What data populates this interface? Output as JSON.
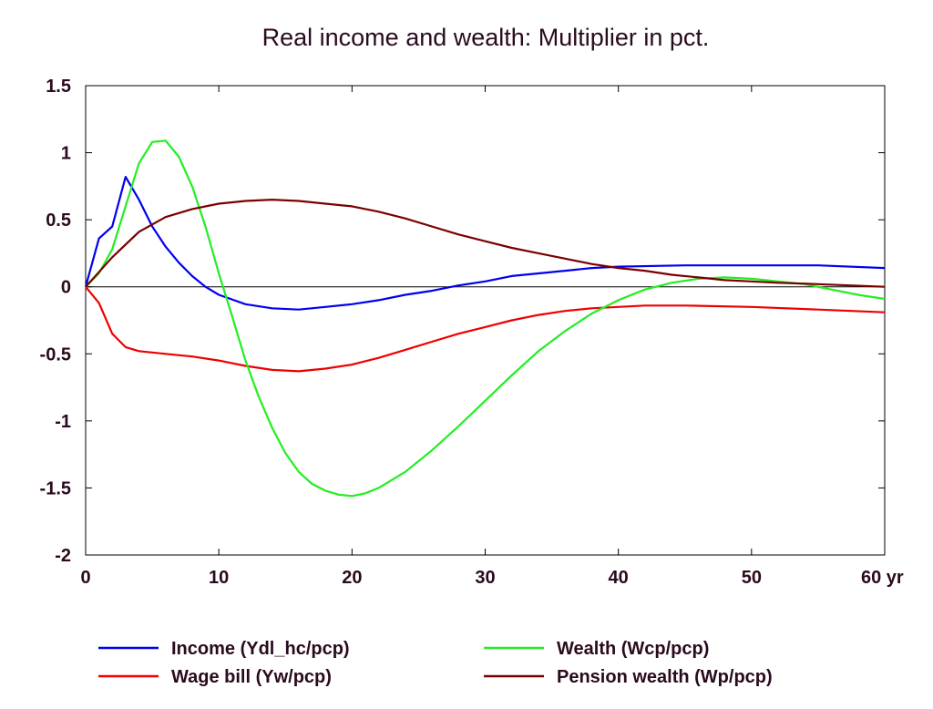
{
  "chart_data": {
    "type": "line",
    "title": "Real income and wealth: Multiplier in pct.",
    "xlabel": "",
    "ylabel": "",
    "x_unit_label": "yr",
    "xlim": [
      0,
      60
    ],
    "ylim": [
      -2,
      1.5
    ],
    "x_ticks": [
      0,
      10,
      20,
      30,
      40,
      50,
      60
    ],
    "x_tick_labels": [
      "0",
      "10",
      "20",
      "30",
      "40",
      "50",
      "60 yr"
    ],
    "y_ticks": [
      1.5,
      1,
      0.5,
      0,
      -0.5,
      -1,
      -1.5,
      -2
    ],
    "y_tick_labels": [
      "1.5",
      "1",
      "0.5",
      "0",
      "-0.5",
      "-1",
      "-1.5",
      "-2"
    ],
    "zero_line": true,
    "grid": false,
    "legend_position": "bottom",
    "series": [
      {
        "name": "Income (Ydl_hc/pcp)",
        "color": "#0000ee",
        "points": [
          [
            0,
            0
          ],
          [
            1,
            0.36
          ],
          [
            2,
            0.45
          ],
          [
            3,
            0.82
          ],
          [
            4,
            0.65
          ],
          [
            5,
            0.45
          ],
          [
            6,
            0.3
          ],
          [
            7,
            0.18
          ],
          [
            8,
            0.08
          ],
          [
            9,
            0.0
          ],
          [
            10,
            -0.06
          ],
          [
            12,
            -0.13
          ],
          [
            14,
            -0.16
          ],
          [
            16,
            -0.17
          ],
          [
            18,
            -0.15
          ],
          [
            20,
            -0.13
          ],
          [
            22,
            -0.1
          ],
          [
            24,
            -0.06
          ],
          [
            26,
            -0.03
          ],
          [
            28,
            0.01
          ],
          [
            30,
            0.04
          ],
          [
            32,
            0.08
          ],
          [
            34,
            0.1
          ],
          [
            36,
            0.12
          ],
          [
            38,
            0.14
          ],
          [
            40,
            0.15
          ],
          [
            45,
            0.16
          ],
          [
            50,
            0.16
          ],
          [
            55,
            0.16
          ],
          [
            60,
            0.14
          ]
        ]
      },
      {
        "name": "Wage bill (Yw/pcp)",
        "color": "#ee0000",
        "points": [
          [
            0,
            0
          ],
          [
            1,
            -0.12
          ],
          [
            2,
            -0.35
          ],
          [
            3,
            -0.45
          ],
          [
            4,
            -0.48
          ],
          [
            6,
            -0.5
          ],
          [
            8,
            -0.52
          ],
          [
            10,
            -0.55
          ],
          [
            12,
            -0.59
          ],
          [
            14,
            -0.62
          ],
          [
            16,
            -0.63
          ],
          [
            18,
            -0.61
          ],
          [
            20,
            -0.58
          ],
          [
            22,
            -0.53
          ],
          [
            24,
            -0.47
          ],
          [
            26,
            -0.41
          ],
          [
            28,
            -0.35
          ],
          [
            30,
            -0.3
          ],
          [
            32,
            -0.25
          ],
          [
            34,
            -0.21
          ],
          [
            36,
            -0.18
          ],
          [
            38,
            -0.16
          ],
          [
            40,
            -0.15
          ],
          [
            42,
            -0.14
          ],
          [
            45,
            -0.14
          ],
          [
            50,
            -0.15
          ],
          [
            55,
            -0.17
          ],
          [
            60,
            -0.19
          ]
        ]
      },
      {
        "name": "Wealth (Wcp/pcp)",
        "color": "#22ee22",
        "points": [
          [
            0,
            0
          ],
          [
            1,
            0.1
          ],
          [
            2,
            0.28
          ],
          [
            3,
            0.6
          ],
          [
            4,
            0.92
          ],
          [
            5,
            1.08
          ],
          [
            6,
            1.09
          ],
          [
            7,
            0.97
          ],
          [
            8,
            0.75
          ],
          [
            9,
            0.45
          ],
          [
            10,
            0.1
          ],
          [
            11,
            -0.22
          ],
          [
            12,
            -0.55
          ],
          [
            13,
            -0.82
          ],
          [
            14,
            -1.05
          ],
          [
            15,
            -1.24
          ],
          [
            16,
            -1.38
          ],
          [
            17,
            -1.47
          ],
          [
            18,
            -1.52
          ],
          [
            19,
            -1.55
          ],
          [
            20,
            -1.56
          ],
          [
            21,
            -1.54
          ],
          [
            22,
            -1.5
          ],
          [
            24,
            -1.38
          ],
          [
            26,
            -1.22
          ],
          [
            28,
            -1.04
          ],
          [
            30,
            -0.85
          ],
          [
            32,
            -0.66
          ],
          [
            34,
            -0.48
          ],
          [
            36,
            -0.33
          ],
          [
            38,
            -0.2
          ],
          [
            40,
            -0.1
          ],
          [
            42,
            -0.02
          ],
          [
            44,
            0.03
          ],
          [
            46,
            0.06
          ],
          [
            48,
            0.07
          ],
          [
            50,
            0.06
          ],
          [
            52,
            0.04
          ],
          [
            54,
            0.02
          ],
          [
            56,
            -0.02
          ],
          [
            58,
            -0.06
          ],
          [
            60,
            -0.09
          ]
        ]
      },
      {
        "name": "Pension wealth (Wp/pcp)",
        "color": "#7a0000",
        "points": [
          [
            0,
            0
          ],
          [
            2,
            0.22
          ],
          [
            4,
            0.41
          ],
          [
            6,
            0.52
          ],
          [
            8,
            0.58
          ],
          [
            10,
            0.62
          ],
          [
            12,
            0.64
          ],
          [
            14,
            0.65
          ],
          [
            16,
            0.64
          ],
          [
            18,
            0.62
          ],
          [
            20,
            0.6
          ],
          [
            22,
            0.56
          ],
          [
            24,
            0.51
          ],
          [
            26,
            0.45
          ],
          [
            28,
            0.39
          ],
          [
            30,
            0.34
          ],
          [
            32,
            0.29
          ],
          [
            34,
            0.25
          ],
          [
            36,
            0.21
          ],
          [
            38,
            0.17
          ],
          [
            40,
            0.14
          ],
          [
            42,
            0.12
          ],
          [
            44,
            0.09
          ],
          [
            46,
            0.07
          ],
          [
            48,
            0.05
          ],
          [
            50,
            0.04
          ],
          [
            52,
            0.03
          ],
          [
            55,
            0.02
          ],
          [
            60,
            0.0
          ]
        ]
      }
    ]
  }
}
